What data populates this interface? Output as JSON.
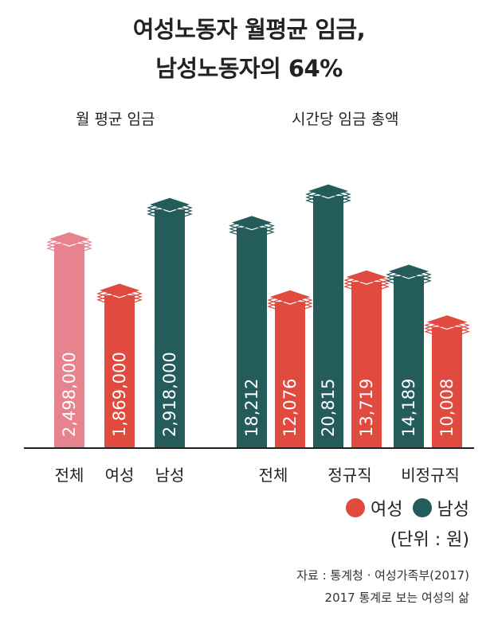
{
  "title": {
    "line1": "여성노동자 월평균 임금,",
    "line2": "남성노동자의 64%"
  },
  "colors": {
    "female": "#e04a3f",
    "male": "#245c5c",
    "total_monthly": "#e6838e",
    "axis": "#222222",
    "label_text": "#ffffff"
  },
  "legend": {
    "female": "여성",
    "male": "남성",
    "unit": "(단위 : 원)"
  },
  "source": {
    "line1": "자료 : 통계청 · 여성가족부(2017)",
    "line2": "2017 통계로 보는 여성의 삶"
  },
  "chart_data": [
    {
      "type": "bar",
      "title": "월 평균 임금",
      "unit": "원",
      "categories": [
        "전체",
        "여성",
        "남성"
      ],
      "values": [
        2498000,
        1869000,
        2918000
      ],
      "labels": [
        "2,498,000",
        "1,869,000",
        "2,918,000"
      ],
      "colors": [
        "#e6838e",
        "#e04a3f",
        "#245c5c"
      ]
    },
    {
      "type": "bar",
      "title": "시간당 임금 총액",
      "unit": "원",
      "categories": [
        "전체",
        "정규직",
        "비정규직"
      ],
      "series": [
        {
          "name": "여성",
          "values": [
            12076,
            13719,
            10008
          ],
          "labels": [
            "12,076",
            "13,719",
            "10,008"
          ]
        },
        {
          "name": "남성",
          "values": [
            18212,
            20815,
            14189
          ],
          "labels": [
            "18,212",
            "20,815",
            "14,189"
          ]
        }
      ]
    }
  ]
}
